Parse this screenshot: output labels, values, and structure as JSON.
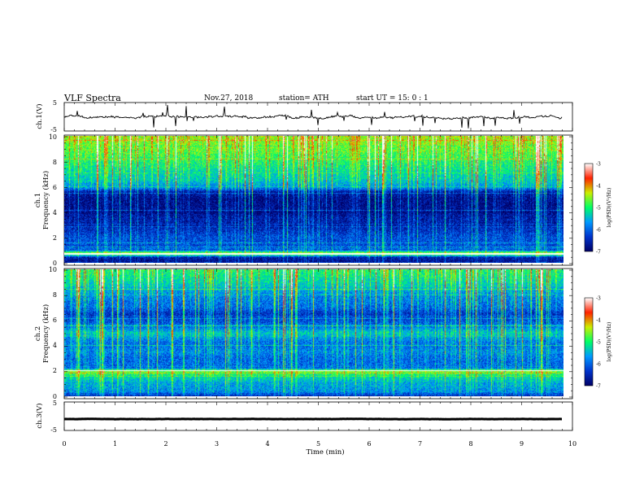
{
  "header": {
    "title": "VLF  Spectra",
    "date": "Nov.27, 2018",
    "station": "station= ATH",
    "start": "start  UT  =    15: 0   : 1"
  },
  "chart_data": {
    "type": "heatmap",
    "title": "VLF  Spectra",
    "xlabel": "Time  (min)",
    "xlim": [
      0,
      10
    ],
    "x_ticks": [
      "0",
      "1",
      "2",
      "3",
      "4",
      "5",
      "6",
      "7",
      "8",
      "9",
      "10"
    ],
    "data_end_min": 9.8,
    "panels": [
      {
        "name": "ch1-waveform",
        "type": "line",
        "ylabel": "ch.1(V)",
        "ylim": [
          -5,
          5
        ],
        "y_ticks": [
          "5",
          "-5"
        ],
        "mean": 0,
        "noise_amplitude": 0.5,
        "color": "#000000"
      },
      {
        "name": "ch1-spectrogram",
        "type": "heatmap",
        "ylabel_channel": "ch.1",
        "ylabel": "Frequency  (kHz)",
        "ylim": [
          0,
          10
        ],
        "y_ticks": [
          "0",
          "2",
          "4",
          "6",
          "8",
          "10"
        ],
        "profile_khz": [
          0,
          0.4,
          0.7,
          1,
          2,
          3,
          3.5,
          4,
          5,
          5.6,
          5.9,
          6.5,
          7,
          8,
          9,
          10
        ],
        "profile_level": [
          -6.8,
          -6.6,
          -4.2,
          -6.2,
          -6.2,
          -6.6,
          -6.6,
          -6.8,
          -6.8,
          -6.6,
          -5.8,
          -5.4,
          -5.3,
          -5.0,
          -4.7,
          -4.5
        ],
        "strong_lines_khz": [
          0.7
        ],
        "colorbar": {
          "label": "log(PSD)(V²/Hz)",
          "range": [
            -7,
            -3
          ],
          "ticks": [
            "-3",
            "-4",
            "-5",
            "-6",
            "-7"
          ]
        }
      },
      {
        "name": "ch2-spectrogram",
        "type": "heatmap",
        "ylabel_channel": "ch.2",
        "ylabel": "Frequency  (kHz)",
        "ylim": [
          0,
          10
        ],
        "y_ticks": [
          "0",
          "2",
          "4",
          "6",
          "8",
          "10"
        ],
        "profile_khz": [
          0,
          0.3,
          1,
          1.5,
          2,
          2.2,
          3,
          3.5,
          4,
          4.5,
          5,
          5.5,
          6,
          6.5,
          7,
          8,
          9,
          10
        ],
        "profile_level": [
          -6.6,
          -5.8,
          -5.6,
          -5.3,
          -4.6,
          -6.0,
          -6.0,
          -5.8,
          -6.0,
          -5.8,
          -5.4,
          -6.0,
          -6.2,
          -6.4,
          -6.0,
          -5.8,
          -5.3,
          -5.0
        ],
        "strong_lines_khz": [
          2.0
        ],
        "colorbar": {
          "label": "log(PSD)(V²/Hz)",
          "range": [
            -7,
            -3
          ],
          "ticks": [
            "-3",
            "-4",
            "-5",
            "-6",
            "-7"
          ]
        }
      },
      {
        "name": "ch3-waveform",
        "type": "line",
        "ylabel": "ch.3(V)",
        "ylim": [
          -5,
          5
        ],
        "y_ticks": [
          "5",
          "-5"
        ],
        "mean": -1,
        "noise_amplitude": 0.05,
        "color": "#000000"
      }
    ],
    "colormap": [
      "#000066",
      "#0033cc",
      "#0099ff",
      "#00ff66",
      "#ccee00",
      "#ff2200",
      "#ffffff"
    ]
  }
}
